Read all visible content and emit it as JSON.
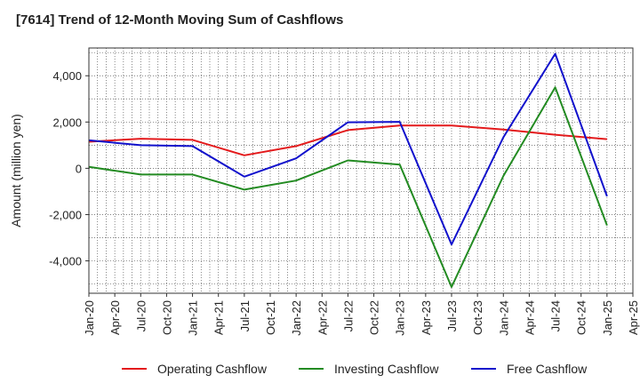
{
  "chart_data": {
    "type": "line",
    "title": "[7614]  Trend of 12-Month Moving Sum of Cashflows",
    "xlabel": "",
    "ylabel": "Amount (million yen)",
    "categories": [
      "Jan-20",
      "Apr-20",
      "Jul-20",
      "Oct-20",
      "Jan-21",
      "Apr-21",
      "Jul-21",
      "Oct-21",
      "Jan-22",
      "Apr-22",
      "Jul-22",
      "Oct-22",
      "Jan-23",
      "Apr-23",
      "Jul-23",
      "Oct-23",
      "Jan-24",
      "Apr-24",
      "Jul-24",
      "Oct-24",
      "Jan-25",
      "Apr-25"
    ],
    "ylim": [
      -5400,
      5200
    ],
    "yticks": [
      -4000,
      -2000,
      0,
      2000,
      4000
    ],
    "ytick_labels": [
      "-4,000",
      "-2,000",
      "0",
      "2,000",
      "4,000"
    ],
    "grid": true,
    "legend_position": "bottom",
    "series": [
      {
        "name": "Operating Cashflow",
        "color": "#e31a1c",
        "values": [
          1150,
          null,
          1280,
          null,
          1230,
          null,
          560,
          null,
          960,
          null,
          1650,
          null,
          1850,
          null,
          1850,
          null,
          1680,
          null,
          1450,
          null,
          1260,
          null
        ]
      },
      {
        "name": "Investing Cashflow",
        "color": "#238b22",
        "values": [
          60,
          null,
          -270,
          null,
          -270,
          null,
          -920,
          null,
          -530,
          null,
          340,
          null,
          160,
          null,
          -5130,
          null,
          -330,
          null,
          3500,
          null,
          -2470,
          null
        ]
      },
      {
        "name": "Free Cashflow",
        "color": "#1111cc",
        "values": [
          1210,
          null,
          1000,
          null,
          960,
          null,
          -360,
          null,
          430,
          null,
          1990,
          null,
          2010,
          null,
          -3290,
          null,
          1340,
          null,
          4950,
          null,
          -1210,
          null
        ]
      }
    ]
  }
}
